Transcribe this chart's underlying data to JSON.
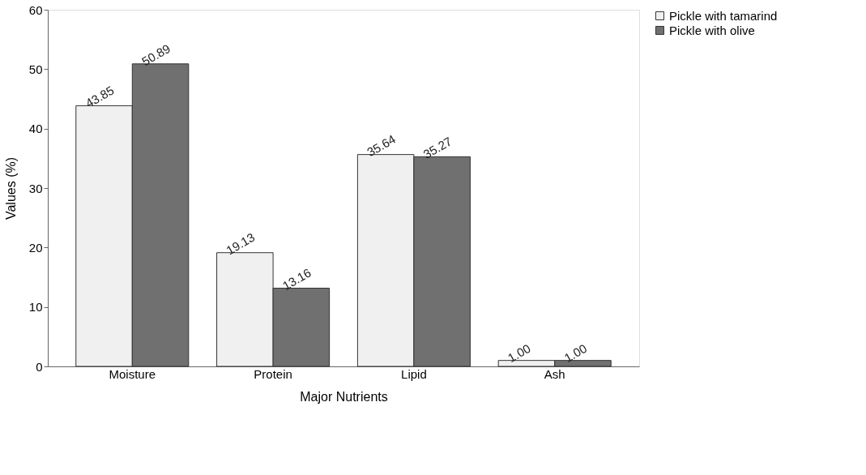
{
  "chart_data": {
    "type": "bar",
    "xlabel": "Major Nutrients",
    "ylabel": "Values (%)",
    "categories": [
      "Moisture",
      "Protein",
      "Lipid",
      "Ash"
    ],
    "series": [
      {
        "name": "Pickle with tamarind",
        "color": "#f0f0f0",
        "values": [
          43.85,
          19.13,
          35.64,
          1.0
        ],
        "value_labels": [
          "43.85",
          "19.13",
          "35.64",
          "1.00"
        ]
      },
      {
        "name": "Pickle with olive",
        "color": "#707070",
        "values": [
          50.89,
          13.16,
          35.27,
          1.0
        ],
        "value_labels": [
          "50.89",
          "13.16",
          "35.27",
          "1.00"
        ]
      }
    ],
    "ylim": [
      0,
      60
    ],
    "yticks": [
      0,
      10,
      20,
      30,
      40,
      50,
      60
    ],
    "grid": false,
    "legend": "right"
  }
}
